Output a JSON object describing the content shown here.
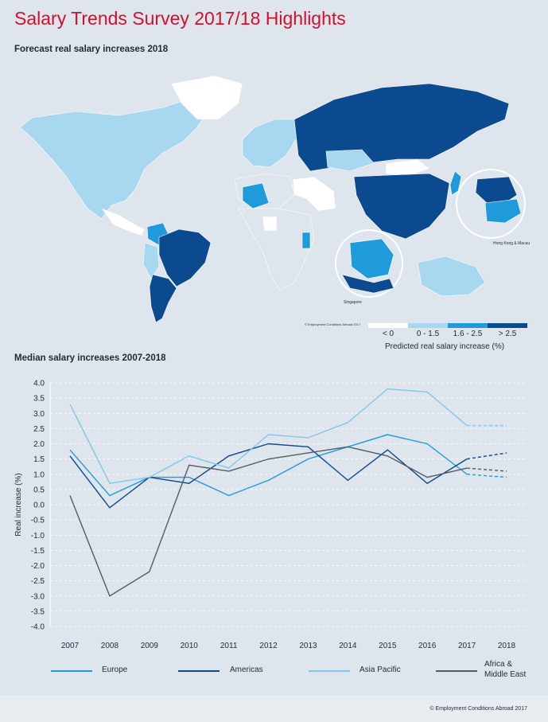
{
  "header": {
    "title": "Salary Trends Survey 2017/18 Highlights"
  },
  "map": {
    "subtitle": "Forecast real salary increases 2018",
    "inset_singapore": "Singapore",
    "inset_hongkong": "Hong Kong & Macau",
    "copyright": "© Employment Conditions Abroad 2017",
    "legend": {
      "items": [
        {
          "label": "< 0",
          "color": "#ffffff"
        },
        {
          "label": "0 - 1.5",
          "color": "#a8d8f0"
        },
        {
          "label": "1.6 - 2.5",
          "color": "#1f9bdc"
        },
        {
          "label": "> 2.5",
          "color": "#0b4a8f"
        }
      ],
      "caption": "Predicted real salary increase (%)"
    },
    "colors": {
      "ocean": "#dfe5ec",
      "land_base": "#a8d8f0",
      "land_mid": "#1f9bdc",
      "land_dark": "#0b4a8f",
      "land_white": "#ffffff"
    }
  },
  "chart_title": "Median salary increases 2007-2018",
  "chart_data": {
    "type": "line",
    "x": [
      "2007",
      "2008",
      "2009",
      "2010",
      "2011",
      "2012",
      "2013",
      "2014",
      "2015",
      "2016",
      "2017",
      "2018"
    ],
    "ylabel": "Real increase (%)",
    "ylim": [
      -4.0,
      4.0
    ],
    "yticks": [
      "4.0",
      "3.5",
      "3.0",
      "2.5",
      "2.0",
      "1.5",
      "1.0",
      "0.5",
      "0.0",
      "-0.5",
      "-1.0",
      "-1.5",
      "-2.0",
      "-2.5",
      "-3.0",
      "-3.5",
      "-4.0"
    ],
    "grid": true,
    "forecast_from": "2017",
    "series": [
      {
        "name": "Europe",
        "color": "#1f9bdc",
        "values": [
          1.8,
          0.3,
          0.9,
          0.9,
          0.3,
          0.8,
          1.5,
          1.9,
          2.3,
          2.0,
          1.0,
          0.9
        ]
      },
      {
        "name": "Americas",
        "color": "#0b4a8f",
        "values": [
          1.6,
          -0.1,
          0.9,
          0.7,
          1.6,
          2.0,
          1.9,
          0.8,
          1.8,
          0.7,
          1.5,
          1.7
        ]
      },
      {
        "name": "Asia Pacific",
        "color": "#7fc8ec",
        "values": [
          3.3,
          0.7,
          0.9,
          1.6,
          1.2,
          2.3,
          2.2,
          2.7,
          3.8,
          3.7,
          2.6,
          2.6
        ]
      },
      {
        "name": "Africa & Middle East",
        "color": "#555b63",
        "values": [
          0.3,
          -3.0,
          -2.2,
          1.3,
          1.1,
          1.5,
          1.7,
          1.9,
          1.6,
          0.9,
          1.2,
          1.1
        ]
      }
    ]
  },
  "chart_legend": {
    "europe": "Europe",
    "americas": "Americas",
    "asia": "Asia Pacific",
    "africa_1": "Africa &",
    "africa_2": "Middle East"
  },
  "footer": {
    "copyright": "© Employment Conditions Abroad 2017"
  }
}
